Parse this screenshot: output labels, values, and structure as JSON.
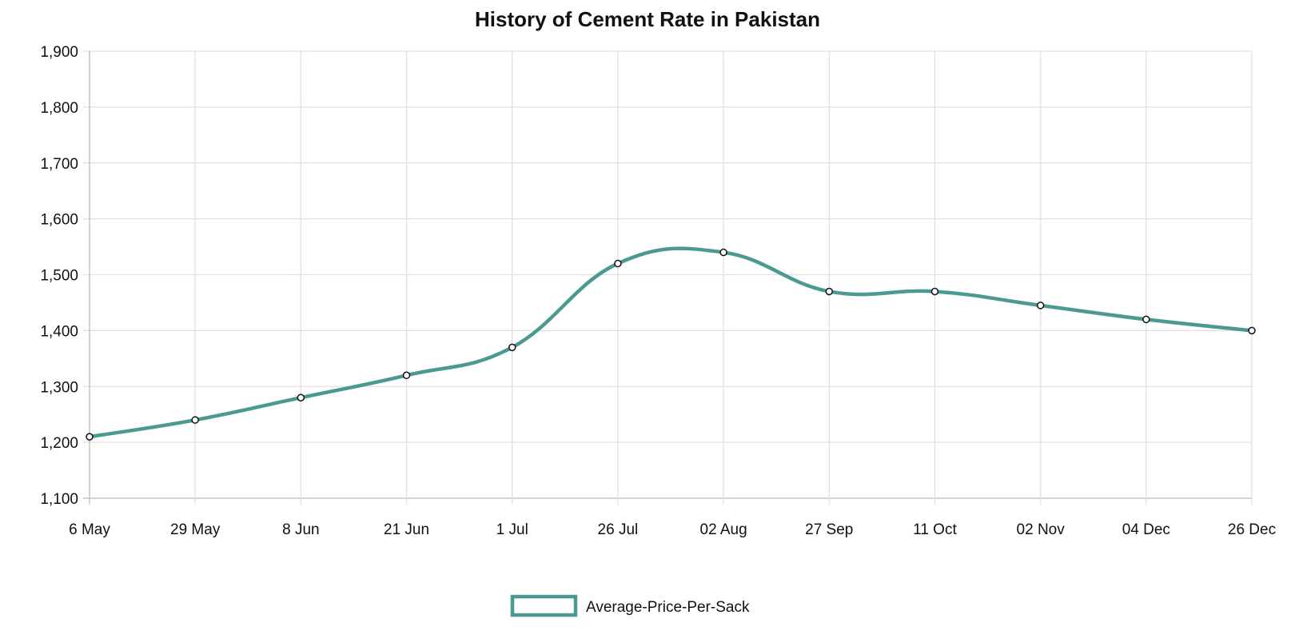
{
  "chart_data": {
    "type": "line",
    "title": "History of Cement Rate in Pakistan",
    "categories": [
      "6 May",
      "29 May",
      "8 Jun",
      "21 Jun",
      "1 Jul",
      "26 Jul",
      "02 Aug",
      "27 Sep",
      "11 Oct",
      "02 Nov",
      "04 Dec",
      "26 Dec"
    ],
    "series": [
      {
        "name": "Average-Price-Per-Sack",
        "values": [
          1210,
          1240,
          1280,
          1320,
          1370,
          1520,
          1540,
          1470,
          1470,
          1445,
          1420,
          1400
        ],
        "color": "#4a9a91"
      }
    ],
    "ylim": [
      1100,
      1900
    ],
    "yticks": [
      1100,
      1200,
      1300,
      1400,
      1500,
      1600,
      1700,
      1800,
      1900
    ],
    "ytick_labels": [
      "1,100",
      "1,200",
      "1,300",
      "1,400",
      "1,500",
      "1,600",
      "1,700",
      "1,800",
      "1,900"
    ],
    "grid": true,
    "legend": "bottom",
    "smooth": true
  }
}
